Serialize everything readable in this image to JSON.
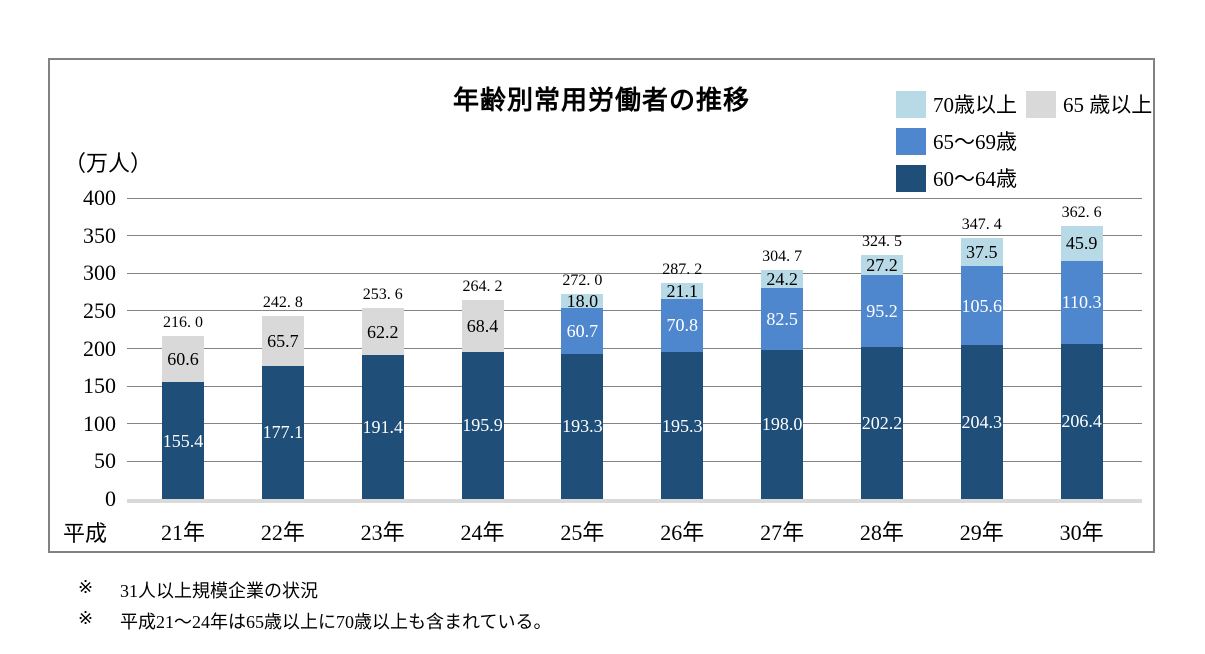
{
  "chart": {
    "title": "年齢別常用労働者の推移",
    "unit_label": "（万人）",
    "era_label": "平成",
    "notes": [
      {
        "marker": "※",
        "text": "31人以上規模企業の状況"
      },
      {
        "marker": "※",
        "text": "平成21〜24年は65歳以上に70歳以上も含まれている。"
      }
    ]
  },
  "legend": {
    "rows": [
      [
        {
          "swatch_color": "#B8DAE6",
          "label": "70歳以上"
        },
        {
          "swatch_color": "#D9D9D9",
          "label": "65 歳以上"
        }
      ],
      [
        {
          "swatch_color": "#4E87CE",
          "label": "65〜69歳"
        }
      ],
      [
        {
          "swatch_color": "#1F4E79",
          "label": "60〜64歳"
        }
      ]
    ]
  },
  "chart_data": {
    "type": "bar",
    "stacked": true,
    "title": "年齢別常用労働者の推移",
    "ylabel": "（万人）",
    "xlabel": "平成",
    "ylim": [
      0,
      400
    ],
    "yticks": [
      0,
      50,
      100,
      150,
      200,
      250,
      300,
      350,
      400
    ],
    "grid": true,
    "legend_position": "top-right",
    "categories": [
      "21年",
      "22年",
      "23年",
      "24年",
      "25年",
      "26年",
      "27年",
      "28年",
      "29年",
      "30年"
    ],
    "series": [
      {
        "name": "60〜64歳",
        "color": "#1F4E79",
        "label_color": "#FFFFFF",
        "values": [
          155.4,
          177.1,
          191.4,
          195.9,
          193.3,
          195.3,
          198.0,
          202.2,
          204.3,
          206.4
        ],
        "labels": [
          "155.4",
          "177.1",
          "191.4",
          "195.9",
          "193.3",
          "195.3",
          "198.0",
          "202.2",
          "204.3",
          "206.4"
        ]
      },
      {
        "name": "65〜69歳",
        "color": "#4E87CE",
        "label_color": "#FFFFFF",
        "values": [
          null,
          null,
          null,
          null,
          60.7,
          70.8,
          82.5,
          95.2,
          105.6,
          110.3
        ],
        "labels": [
          "",
          "",
          "",
          "",
          "60.7",
          "70.8",
          "82.5",
          "95.2",
          "105.6",
          "110.3"
        ]
      },
      {
        "name": "70歳以上",
        "color": "#B8DAE6",
        "label_color": "#000000",
        "values": [
          null,
          null,
          null,
          null,
          18.0,
          21.1,
          24.2,
          27.2,
          37.5,
          45.9
        ],
        "labels": [
          "",
          "",
          "",
          "",
          "18.0",
          "21.1",
          "24.2",
          "27.2",
          "37.5",
          "45.9"
        ]
      },
      {
        "name": "65 歳以上",
        "color": "#D9D9D9",
        "label_color": "#000000",
        "values": [
          60.6,
          65.7,
          62.2,
          68.4,
          null,
          null,
          null,
          null,
          null,
          null
        ],
        "labels": [
          "60.6",
          "65.7",
          "62.2",
          "68.4",
          "",
          "",
          "",
          "",
          "",
          ""
        ]
      }
    ],
    "totals": [
      216.0,
      242.8,
      253.6,
      264.2,
      272.0,
      287.2,
      304.7,
      324.5,
      347.4,
      362.6
    ],
    "total_labels": [
      "216. 0",
      "242. 8",
      "253. 6",
      "264. 2",
      "272. 0",
      "287. 2",
      "304. 7",
      "324. 5",
      "347. 4",
      "362. 6"
    ]
  }
}
